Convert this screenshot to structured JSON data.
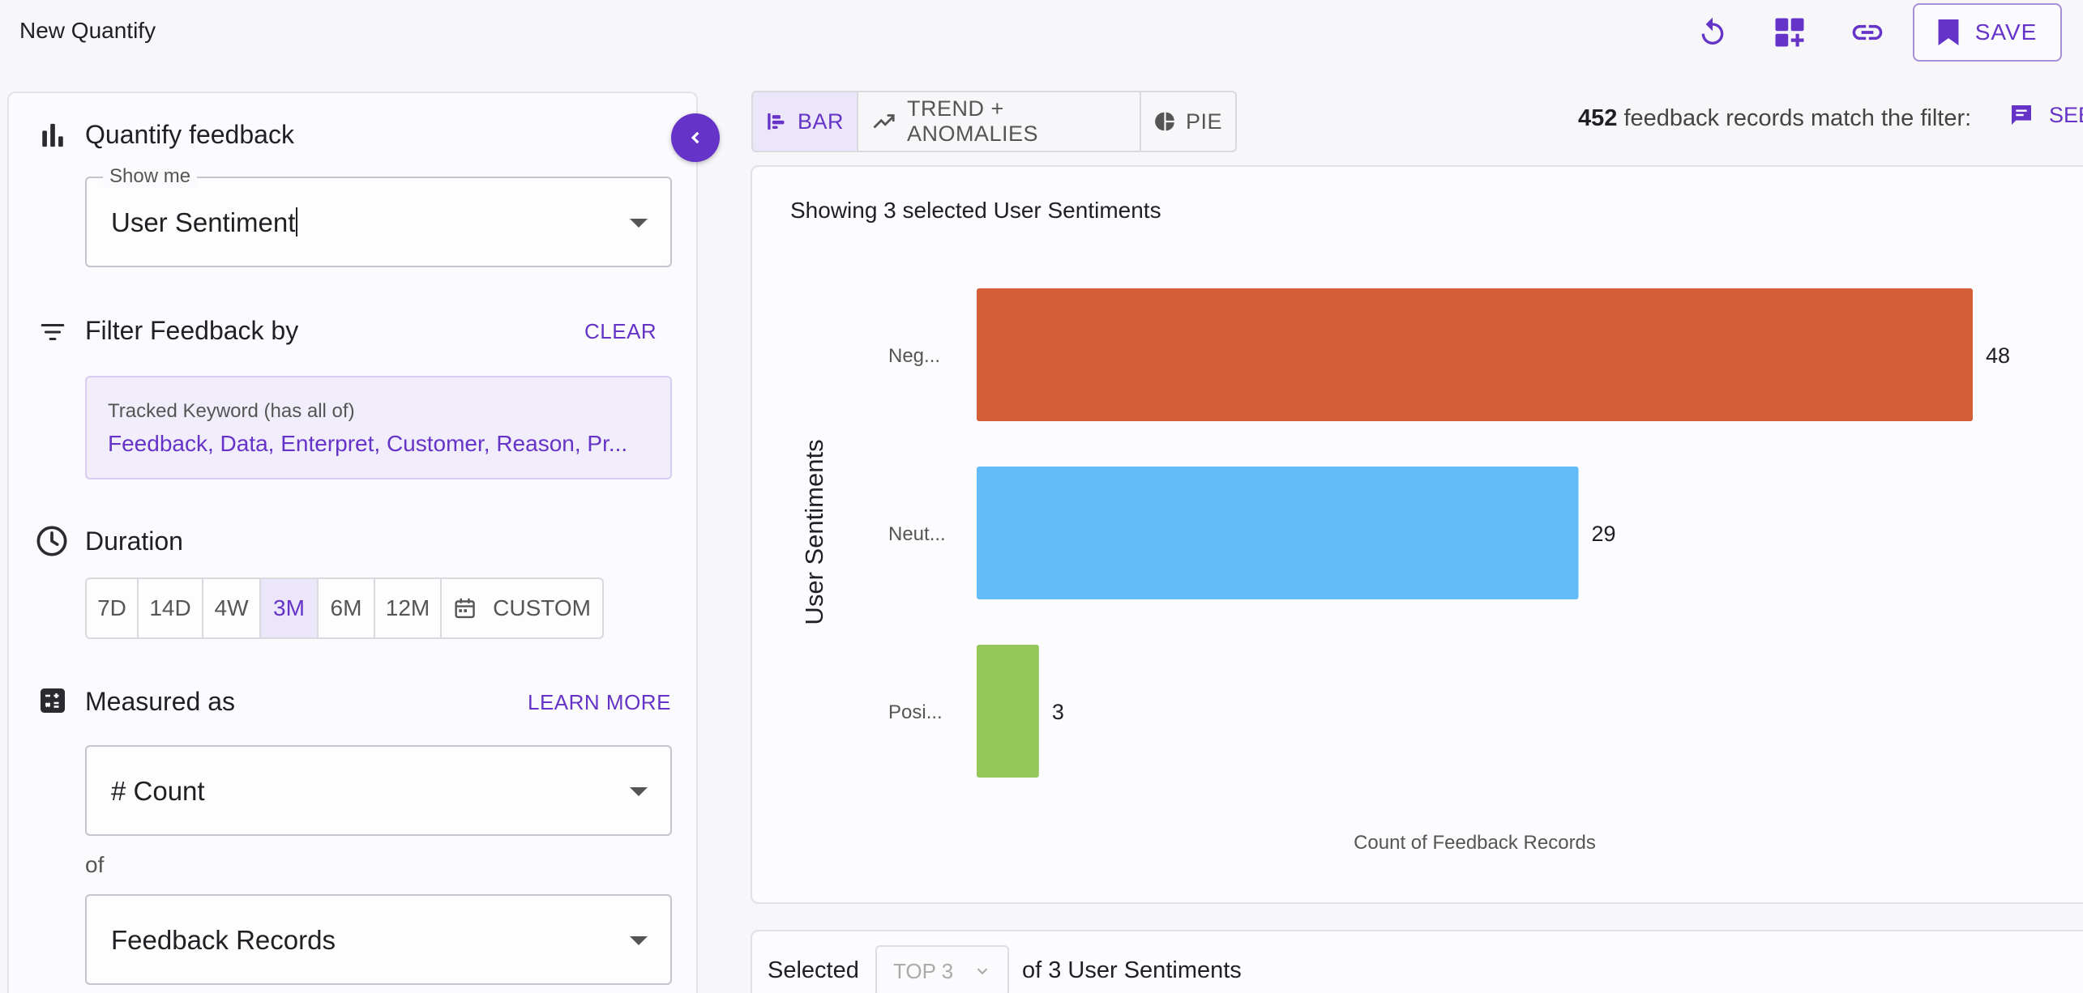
{
  "app": {
    "title": "New Quantify"
  },
  "header": {
    "save_label": "SAVE"
  },
  "quantify": {
    "title": "Quantify feedback",
    "show_me_label": "Show me",
    "show_me_value": "User Sentiment"
  },
  "filter": {
    "title": "Filter Feedback by",
    "clear_label": "CLEAR",
    "keyword_label": "Tracked Keyword  (has all of)",
    "keywords": "Feedback, Data, Enterpret, Customer, Reason, Pr..."
  },
  "duration": {
    "title": "Duration",
    "options": [
      "7D",
      "14D",
      "4W",
      "3M",
      "6M",
      "12M"
    ],
    "selected": "3M",
    "custom_label": "CUSTOM"
  },
  "measured": {
    "title": "Measured as",
    "learn_more": "LEARN MORE",
    "metric": "# Count",
    "of_label": "of",
    "source": "Feedback Records"
  },
  "chart_tabs": {
    "bar": "BAR",
    "trend": "TREND + ANOMALIES",
    "pie": "PIE"
  },
  "match": {
    "count": "452",
    "text": " feedback records match the filter:",
    "see_label": "SEE"
  },
  "chart_heading": "Showing 3 selected User Sentiments",
  "chart_data": {
    "type": "bar",
    "orientation": "horizontal",
    "categories": [
      "Neg...",
      "Neut...",
      "Posi..."
    ],
    "values": [
      48,
      29,
      3
    ],
    "colors": [
      "#d45f36",
      "#63bcf7",
      "#95c65a"
    ],
    "xlabel": "Count of Feedback Records",
    "ylabel": "User Sentiments",
    "xlim": [
      0,
      48
    ],
    "grid": false
  },
  "selection": {
    "label": "Selected",
    "dropdown": "TOP 3",
    "tail": "of 3 User Sentiments"
  }
}
